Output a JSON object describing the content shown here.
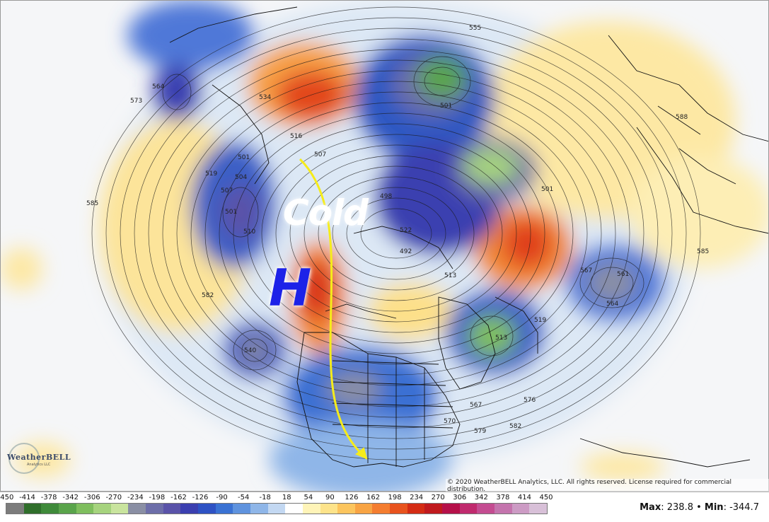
{
  "map": {
    "annotation_cold": "Cold",
    "annotation_high": "H",
    "copyright": "© 2020 WeatherBELL Analytics, LLC. All rights reserved. License required for commercial distribution.",
    "logo_name": "WeatherBELL",
    "logo_sub": "Analytics LLC",
    "contour_labels": [
      "573",
      "564",
      "585",
      "519",
      "507",
      "501",
      "504",
      "501",
      "510",
      "534",
      "516",
      "507",
      "498",
      "501",
      "513",
      "522",
      "492",
      "513",
      "519",
      "501",
      "567",
      "561",
      "564",
      "582",
      "588",
      "540",
      "576",
      "570",
      "567",
      "579",
      "582",
      "585",
      "555"
    ]
  },
  "legend": {
    "ticks": [
      "-450",
      "-414",
      "-378",
      "-342",
      "-306",
      "-270",
      "-234",
      "-198",
      "-162",
      "-126",
      "-90",
      "-54",
      "-18",
      "18",
      "54",
      "90",
      "126",
      "162",
      "198",
      "234",
      "270",
      "306",
      "342",
      "378",
      "414",
      "450"
    ],
    "colors": [
      "#7c7c7c",
      "#2f6e2b",
      "#3f8a3a",
      "#5aa44b",
      "#7fbe5e",
      "#a6d37e",
      "#c9e49e",
      "#8a8fa4",
      "#6d6ea9",
      "#5a53a9",
      "#3b3fb0",
      "#2e52c4",
      "#3a72d3",
      "#5f93de",
      "#8fb6e8",
      "#c3d8f2",
      "#ffffff",
      "#fff4b8",
      "#fde38a",
      "#fcc55e",
      "#f8a444",
      "#f47d30",
      "#e8531e",
      "#d42c14",
      "#c01a1e",
      "#b51049",
      "#c02a6e",
      "#c44c91",
      "#c474ad",
      "#cc9bc4",
      "#d8c0d8"
    ],
    "max_label": "Max",
    "max_value": "238.8",
    "min_label": "Min",
    "min_value": "-344.7"
  }
}
